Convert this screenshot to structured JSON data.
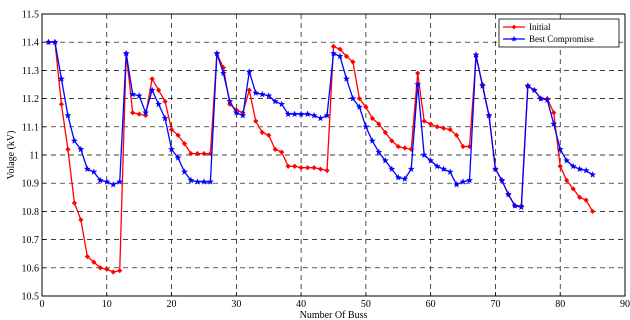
{
  "chart_data": {
    "type": "line",
    "title": "",
    "xlabel": "Number Of Buss",
    "ylabel": "Volage (kV)",
    "xlim": [
      0,
      90
    ],
    "ylim": [
      10.5,
      11.5
    ],
    "xticks": [
      "0",
      "10",
      "20",
      "30",
      "40",
      "50",
      "60",
      "70",
      "80",
      "90"
    ],
    "yticks": [
      "10.5",
      "10.6",
      "10.7",
      "10.8",
      "10.9",
      "11",
      "11.1",
      "11.2",
      "11.3",
      "11.4",
      "11.5"
    ],
    "grid": true,
    "legend_position": "top-right",
    "series": [
      {
        "name": "Initial",
        "color": "#ff0000",
        "marker": "diamond",
        "x": [
          1,
          2,
          3,
          4,
          5,
          6,
          7,
          8,
          9,
          10,
          11,
          12,
          13,
          14,
          15,
          16,
          17,
          18,
          19,
          20,
          21,
          22,
          23,
          24,
          25,
          26,
          27,
          28,
          29,
          30,
          31,
          32,
          33,
          34,
          35,
          36,
          37,
          38,
          39,
          40,
          41,
          42,
          43,
          44,
          45,
          46,
          47,
          48,
          49,
          50,
          51,
          52,
          53,
          54,
          55,
          56,
          57,
          58,
          59,
          60,
          61,
          62,
          63,
          64,
          65,
          66,
          67,
          68,
          69,
          70,
          71,
          72,
          73,
          74,
          75,
          76,
          77,
          78,
          79,
          80,
          81,
          82,
          83,
          84,
          85
        ],
        "values": [
          11.4,
          11.4,
          11.18,
          11.02,
          10.83,
          10.77,
          10.64,
          10.62,
          10.6,
          10.595,
          10.585,
          10.59,
          11.36,
          11.15,
          11.145,
          11.14,
          11.27,
          11.23,
          11.19,
          11.09,
          11.07,
          11.04,
          11.005,
          11.005,
          11.005,
          11.005,
          11.36,
          11.31,
          11.18,
          11.16,
          11.15,
          11.23,
          11.12,
          11.08,
          11.07,
          11.02,
          11.01,
          10.96,
          10.96,
          10.955,
          10.955,
          10.955,
          10.95,
          10.945,
          11.385,
          11.375,
          11.35,
          11.33,
          11.2,
          11.17,
          11.13,
          11.11,
          11.08,
          11.05,
          11.03,
          11.025,
          11.02,
          11.29,
          11.12,
          11.11,
          11.1,
          11.095,
          11.09,
          11.07,
          11.03,
          11.03,
          11.35,
          11.25,
          11.14,
          10.95,
          10.91,
          10.86,
          10.82,
          10.82,
          11.245,
          11.23,
          11.2,
          11.2,
          11.15,
          10.96,
          10.91,
          10.88,
          10.85,
          10.84,
          10.8
        ]
      },
      {
        "name": "Best Compromise",
        "color": "#0000ff",
        "marker": "star",
        "x": [
          1,
          2,
          3,
          4,
          5,
          6,
          7,
          8,
          9,
          10,
          11,
          12,
          13,
          14,
          15,
          16,
          17,
          18,
          19,
          20,
          21,
          22,
          23,
          24,
          25,
          26,
          27,
          28,
          29,
          30,
          31,
          32,
          33,
          34,
          35,
          36,
          37,
          38,
          39,
          40,
          41,
          42,
          43,
          44,
          45,
          46,
          47,
          48,
          49,
          50,
          51,
          52,
          53,
          54,
          55,
          56,
          57,
          58,
          59,
          60,
          61,
          62,
          63,
          64,
          65,
          66,
          67,
          68,
          69,
          70,
          71,
          72,
          73,
          74,
          75,
          76,
          77,
          78,
          79,
          80,
          81,
          82,
          83,
          84,
          85
        ],
        "values": [
          11.4,
          11.4,
          11.27,
          11.14,
          11.05,
          11.02,
          10.95,
          10.94,
          10.91,
          10.905,
          10.895,
          10.905,
          11.36,
          11.215,
          11.21,
          11.15,
          11.23,
          11.18,
          11.13,
          11.02,
          10.99,
          10.94,
          10.91,
          10.905,
          10.905,
          10.905,
          11.36,
          11.29,
          11.19,
          11.15,
          11.14,
          11.295,
          11.22,
          11.215,
          11.21,
          11.19,
          11.18,
          11.145,
          11.145,
          11.145,
          11.145,
          11.14,
          11.13,
          11.14,
          11.36,
          11.35,
          11.27,
          11.2,
          11.17,
          11.1,
          11.05,
          11.01,
          10.98,
          10.95,
          10.92,
          10.915,
          10.95,
          11.25,
          11.0,
          10.98,
          10.96,
          10.95,
          10.94,
          10.895,
          10.905,
          10.91,
          11.355,
          11.245,
          11.14,
          10.95,
          10.91,
          10.86,
          10.82,
          10.815,
          11.245,
          11.23,
          11.2,
          11.195,
          11.11,
          11.02,
          10.98,
          10.96,
          10.95,
          10.945,
          10.93
        ]
      }
    ]
  }
}
